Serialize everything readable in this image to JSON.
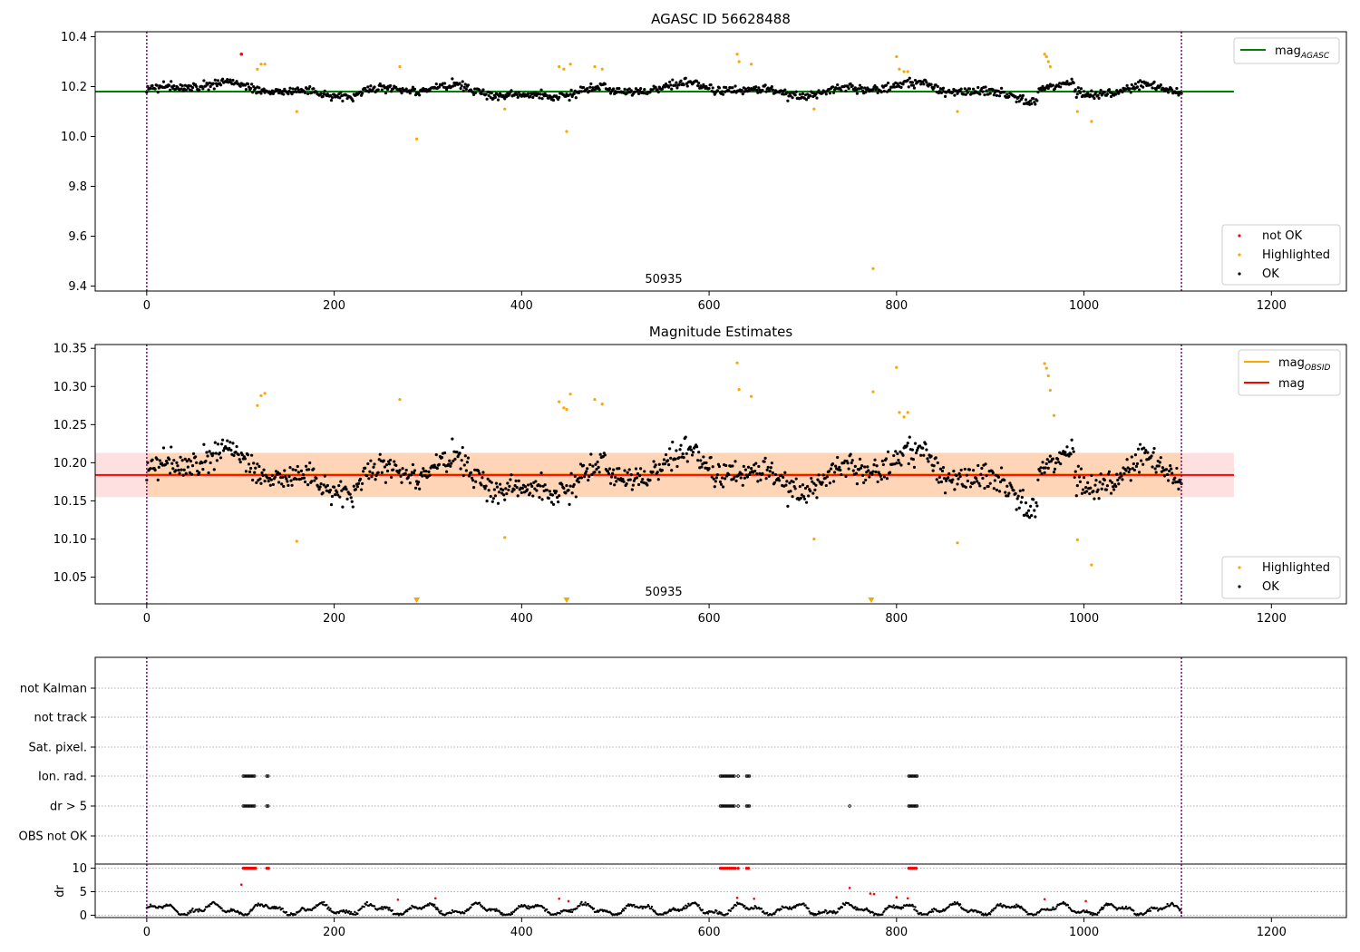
{
  "figure": {
    "panels": [
      {
        "id": "agasc",
        "title": "AGASC ID 56628488",
        "yticks": [
          "9.4",
          "9.6",
          "9.8",
          "10.0",
          "10.2",
          "10.4"
        ],
        "obsid_label": "50935",
        "legend_line": {
          "label_main": "mag",
          "label_sub": "AGASC"
        },
        "legend_points": [
          "not OK",
          "Highlighted",
          "OK"
        ]
      },
      {
        "id": "estimates",
        "title": "Magnitude Estimates",
        "yticks": [
          "10.05",
          "10.10",
          "10.15",
          "10.20",
          "10.25",
          "10.30",
          "10.35"
        ],
        "obsid_label": "50935",
        "legend_lines": [
          {
            "label_main": "mag",
            "label_sub": "OBSID"
          },
          {
            "label_main": "mag",
            "label_sub": ""
          }
        ],
        "legend_points": [
          "Highlighted",
          "OK"
        ]
      },
      {
        "id": "flags",
        "flag_labels": [
          "not Kalman",
          "not track",
          "Sat. pixel.",
          "Ion. rad.",
          "dr > 5",
          "OBS not OK"
        ],
        "dr_yticks": [
          "0",
          "5",
          "10"
        ],
        "dr_ylabel": "dr"
      }
    ],
    "xticks": [
      "0",
      "200",
      "400",
      "600",
      "800",
      "1000",
      "1200"
    ]
  },
  "chart_data": [
    {
      "type": "scatter",
      "title": "AGASC ID 56628488",
      "xlim": [
        -55,
        1280
      ],
      "ylim": [
        9.38,
        10.42
      ],
      "grid": false,
      "legend_placement": [
        "upper-right",
        "lower-right"
      ],
      "obsid_boundaries": [
        0,
        1104
      ],
      "reference_line": {
        "name": "mag AGASC",
        "value": 10.18,
        "color": "#008000"
      },
      "colors": {
        "ok": "#000000",
        "highlighted": "#ffa500",
        "not_ok": "#ff0000",
        "obsid_boundary": "#800080"
      },
      "series": [
        {
          "name": "OK",
          "description": "~1100 samples scattered around 10.18 (range ~10.11–10.26)"
        },
        {
          "name": "Highlighted",
          "x": [
            118,
            122,
            126,
            160,
            270,
            288,
            382,
            440,
            445,
            448,
            452,
            478,
            486,
            630,
            632,
            645,
            712,
            775,
            800,
            803,
            808,
            812,
            865,
            958,
            960,
            962,
            964,
            993,
            1008
          ],
          "y": [
            10.27,
            10.29,
            10.29,
            10.1,
            10.28,
            9.99,
            10.11,
            10.28,
            10.27,
            10.02,
            10.29,
            10.28,
            10.27,
            10.33,
            10.3,
            10.29,
            10.11,
            9.47,
            10.32,
            10.27,
            10.26,
            10.26,
            10.1,
            10.33,
            10.32,
            10.3,
            10.28,
            10.1,
            10.06
          ]
        },
        {
          "name": "not OK",
          "x": [
            101
          ],
          "y": [
            10.33
          ]
        }
      ]
    },
    {
      "type": "scatter",
      "title": "Magnitude Estimates",
      "xlim": [
        -55,
        1280
      ],
      "ylim": [
        10.015,
        10.355
      ],
      "grid": false,
      "legend_placement": [
        "upper-right",
        "lower-right"
      ],
      "obsid_boundaries": [
        0,
        1104
      ],
      "reference_lines": [
        {
          "name": "mag OBSID",
          "value": 10.184,
          "band": [
            10.155,
            10.213
          ],
          "span": [
            0,
            1104
          ],
          "color": "#ffa500"
        },
        {
          "name": "mag",
          "value": 10.184,
          "band": [
            10.155,
            10.213
          ],
          "span": [
            -55,
            1160
          ],
          "color": "#ff0000"
        }
      ],
      "series": [
        {
          "name": "OK",
          "description": "~1100 samples scattered around 10.18 (range ~10.11–10.26)"
        },
        {
          "name": "Highlighted",
          "x": [
            118,
            122,
            126,
            160,
            270,
            382,
            440,
            445,
            448,
            452,
            478,
            486,
            630,
            632,
            645,
            712,
            775,
            800,
            803,
            808,
            812,
            865,
            958,
            960,
            962,
            964,
            968,
            993,
            1008
          ],
          "y": [
            10.275,
            10.288,
            10.291,
            10.097,
            10.283,
            10.102,
            10.28,
            10.272,
            10.27,
            10.29,
            10.283,
            10.277,
            10.331,
            10.296,
            10.287,
            10.1,
            10.293,
            10.325,
            10.266,
            10.26,
            10.266,
            10.095,
            10.33,
            10.324,
            10.314,
            10.295,
            10.262,
            10.099,
            10.066
          ]
        },
        {
          "name": "Highlighted (below range)",
          "x": [
            288,
            448,
            773
          ],
          "y": [
            10.02,
            10.02,
            10.02
          ]
        }
      ]
    },
    {
      "type": "scatter",
      "title": "",
      "xlim": [
        -55,
        1280
      ],
      "categories": [
        "OBS not OK",
        "dr > 5",
        "Ion. rad.",
        "Sat. pixel.",
        "not track",
        "not Kalman"
      ],
      "flag_ranges": {
        "Ion. rad.": [
          [
            103,
            116
          ],
          [
            128,
            130
          ],
          [
            612,
            628
          ],
          [
            631,
            632
          ],
          [
            640,
            643
          ],
          [
            813,
            822
          ]
        ],
        "dr > 5": [
          [
            103,
            116
          ],
          [
            128,
            130
          ],
          [
            612,
            628
          ],
          [
            631,
            632
          ],
          [
            640,
            643
          ],
          [
            750,
            751
          ],
          [
            813,
            822
          ]
        ]
      },
      "dr": {
        "ylabel": "dr",
        "ylim": [
          -0.5,
          10.5
        ],
        "clip_value": 10,
        "description": "dr per sample, mostly 0–3; values above 10 clipped at 10 (red)",
        "clipped_x": [
          103,
          104,
          105,
          106,
          107,
          108,
          109,
          110,
          111,
          112,
          113,
          114,
          115,
          116,
          128,
          130,
          612,
          614,
          616,
          618,
          620,
          622,
          624,
          626,
          628,
          631,
          640,
          642,
          813,
          815,
          817,
          819,
          821
        ],
        "red_points": {
          "x": [
            101,
            268,
            308,
            440,
            450,
            630,
            648,
            750,
            772,
            776,
            800,
            812,
            958,
            1002
          ],
          "y": [
            6.5,
            3.3,
            3.6,
            3.5,
            3,
            3.7,
            3.5,
            5.8,
            4.6,
            4.5,
            3.8,
            3.6,
            3.4,
            3
          ]
        }
      }
    }
  ]
}
